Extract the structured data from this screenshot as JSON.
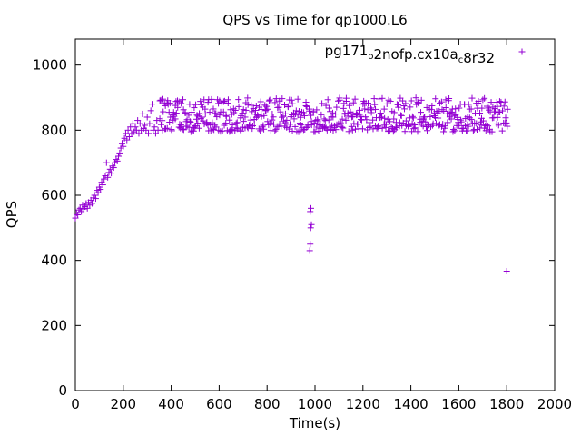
{
  "chart_data": {
    "type": "scatter",
    "title": "QPS vs Time for qp1000.L6",
    "xlabel": "Time(s)",
    "ylabel": "QPS",
    "xlim": [
      0,
      2000
    ],
    "ylim": [
      0,
      1080
    ],
    "xticks": [
      "0",
      "200",
      "400",
      "600",
      "800",
      "1000",
      "1200",
      "1400",
      "1600",
      "1800",
      "2000"
    ],
    "yticks": [
      "0",
      "200",
      "400",
      "600",
      "800",
      "1000"
    ],
    "grid": false,
    "legend_position": "top-right",
    "marker": "+",
    "color": "#9400d3",
    "series": [
      {
        "legend": {
          "parts": [
            {
              "text": "pg171",
              "sub": false
            },
            {
              "text": "o",
              "sub": true
            },
            {
              "text": "2nofp.cx10a",
              "sub": false
            },
            {
              "text": "c",
              "sub": true
            },
            {
              "text": "8r32",
              "sub": false
            }
          ]
        },
        "ramp": [
          [
            0,
            530
          ],
          [
            5,
            545
          ],
          [
            10,
            540
          ],
          [
            15,
            555
          ],
          [
            20,
            560
          ],
          [
            25,
            550
          ],
          [
            30,
            570
          ],
          [
            35,
            558
          ],
          [
            40,
            565
          ],
          [
            45,
            575
          ],
          [
            50,
            560
          ],
          [
            55,
            578
          ],
          [
            60,
            570
          ],
          [
            65,
            585
          ],
          [
            70,
            575
          ],
          [
            75,
            592
          ],
          [
            80,
            600
          ],
          [
            85,
            590
          ],
          [
            90,
            615
          ],
          [
            95,
            608
          ],
          [
            100,
            625
          ],
          [
            105,
            618
          ],
          [
            110,
            640
          ],
          [
            115,
            632
          ],
          [
            120,
            650
          ],
          [
            125,
            660
          ],
          [
            130,
            700
          ],
          [
            135,
            655
          ],
          [
            140,
            670
          ],
          [
            145,
            680
          ],
          [
            150,
            668
          ],
          [
            155,
            690
          ],
          [
            160,
            685
          ],
          [
            165,
            700
          ],
          [
            170,
            710
          ],
          [
            175,
            705
          ],
          [
            180,
            720
          ],
          [
            185,
            730
          ],
          [
            190,
            745
          ],
          [
            195,
            760
          ],
          [
            200,
            750
          ],
          [
            205,
            775
          ],
          [
            210,
            790
          ],
          [
            215,
            770
          ],
          [
            220,
            800
          ],
          [
            225,
            780
          ],
          [
            230,
            810
          ],
          [
            235,
            790
          ],
          [
            240,
            820
          ],
          [
            245,
            795
          ],
          [
            250,
            810
          ],
          [
            255,
            800
          ],
          [
            260,
            830
          ],
          [
            265,
            790
          ],
          [
            270,
            820
          ],
          [
            275,
            800
          ],
          [
            280,
            850
          ],
          [
            285,
            805
          ],
          [
            290,
            815
          ],
          [
            295,
            800
          ],
          [
            300,
            840
          ],
          [
            305,
            790
          ],
          [
            310,
            820
          ],
          [
            315,
            860
          ],
          [
            320,
            880
          ],
          [
            325,
            800
          ],
          [
            330,
            810
          ],
          [
            335,
            790
          ],
          [
            340,
            830
          ],
          [
            345,
            800
          ]
        ],
        "steady": {
          "x_range": [
            350,
            1800
          ],
          "y_min": 785,
          "y_max": 900
        },
        "outliers": [
          [
            978,
            430
          ],
          [
            980,
            450
          ],
          [
            982,
            500
          ],
          [
            985,
            510
          ],
          [
            980,
            550
          ],
          [
            983,
            560
          ],
          [
            1800,
            367
          ]
        ]
      }
    ]
  }
}
